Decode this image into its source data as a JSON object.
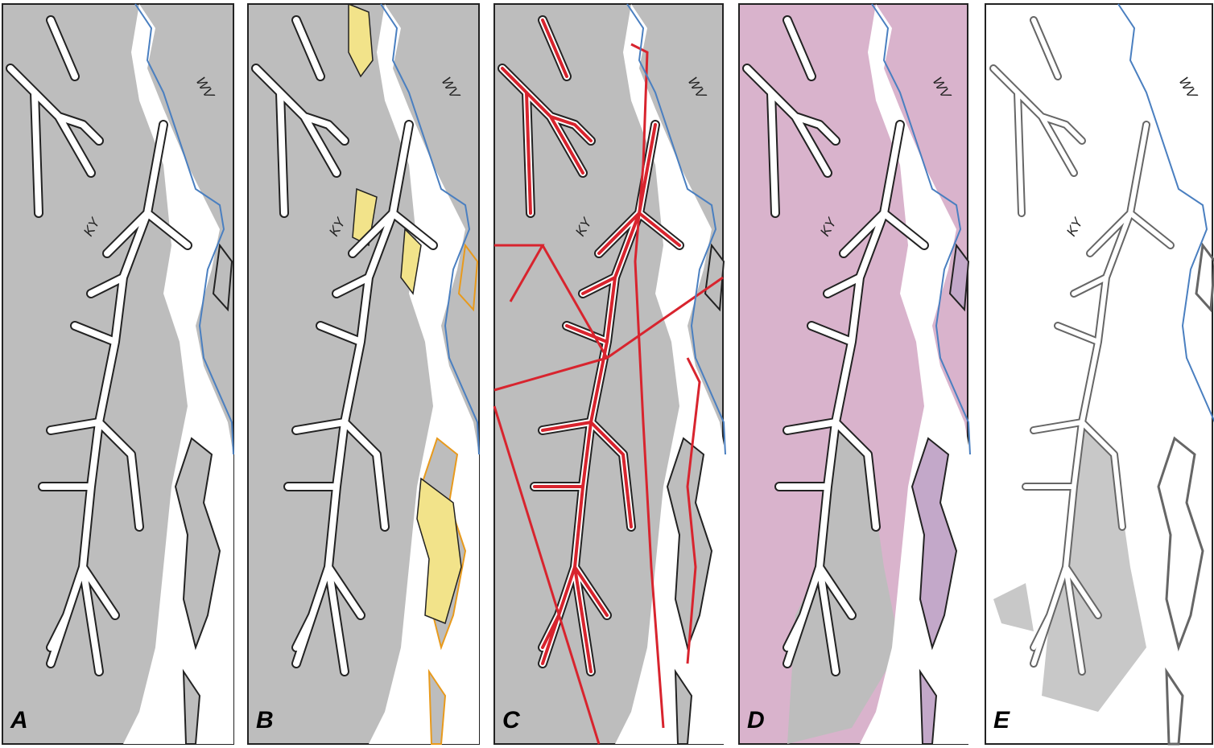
{
  "panels": [
    {
      "label": "A",
      "ky": "KY",
      "wv": "WV"
    },
    {
      "label": "B",
      "ky": "KY",
      "wv": "WV"
    },
    {
      "label": "C",
      "ky": "KY",
      "wv": "WV"
    },
    {
      "label": "D",
      "ky": "KY",
      "wv": "WV"
    },
    {
      "label": "E",
      "ky": "KY",
      "wv": "WV"
    }
  ]
}
